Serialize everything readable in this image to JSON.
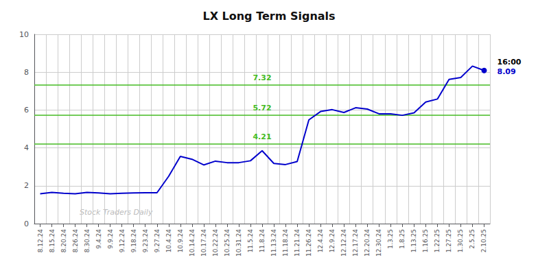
{
  "chart_data": {
    "type": "line",
    "title": "LX Long Term Signals",
    "color": "#0000cc",
    "categories": [
      "8.12.24",
      "8.15.24",
      "8.20.24",
      "8.26.24",
      "8.30.24",
      "9.4.24",
      "9.9.24",
      "9.12.24",
      "9.18.24",
      "9.23.24",
      "9.27.24",
      "10.4.24",
      "10.9.24",
      "10.14.24",
      "10.17.24",
      "10.22.24",
      "10.25.24",
      "10.31.24",
      "11.5.24",
      "11.8.24",
      "11.13.24",
      "11.18.24",
      "11.21.24",
      "11.26.24",
      "12.4.24",
      "12.9.24",
      "12.12.24",
      "12.17.24",
      "12.20.24",
      "12.30.24",
      "1.3.25",
      "1.8.25",
      "1.13.25",
      "1.16.25",
      "1.22.25",
      "1.27.25",
      "1.30.25",
      "2.5.25",
      "2.10.25"
    ],
    "values": [
      1.58,
      1.65,
      1.6,
      1.58,
      1.65,
      1.62,
      1.58,
      1.6,
      1.62,
      1.63,
      1.63,
      2.5,
      3.55,
      3.4,
      3.1,
      3.3,
      3.22,
      3.22,
      3.32,
      3.85,
      3.18,
      3.12,
      3.28,
      5.48,
      5.92,
      6.02,
      5.87,
      6.12,
      6.05,
      5.8,
      5.8,
      5.72,
      5.85,
      6.42,
      6.58,
      7.62,
      7.72,
      8.32,
      8.09
    ],
    "hlines": [
      {
        "y": 7.32,
        "label": "7.32",
        "color": "#44bb22"
      },
      {
        "y": 5.72,
        "label": "5.72",
        "color": "#44bb22"
      },
      {
        "y": 4.21,
        "label": "4.21",
        "color": "#44bb22"
      }
    ],
    "annotations": [
      {
        "text": "Stock Traders Daily",
        "color": "#bbbbbb"
      },
      {
        "text": "16:00",
        "color": "#000000"
      },
      {
        "text": "8.09",
        "color": "#0000cc"
      }
    ],
    "ylim": [
      0,
      10
    ],
    "yticks": [
      0,
      2,
      4,
      6,
      8,
      10
    ],
    "grid": true
  }
}
